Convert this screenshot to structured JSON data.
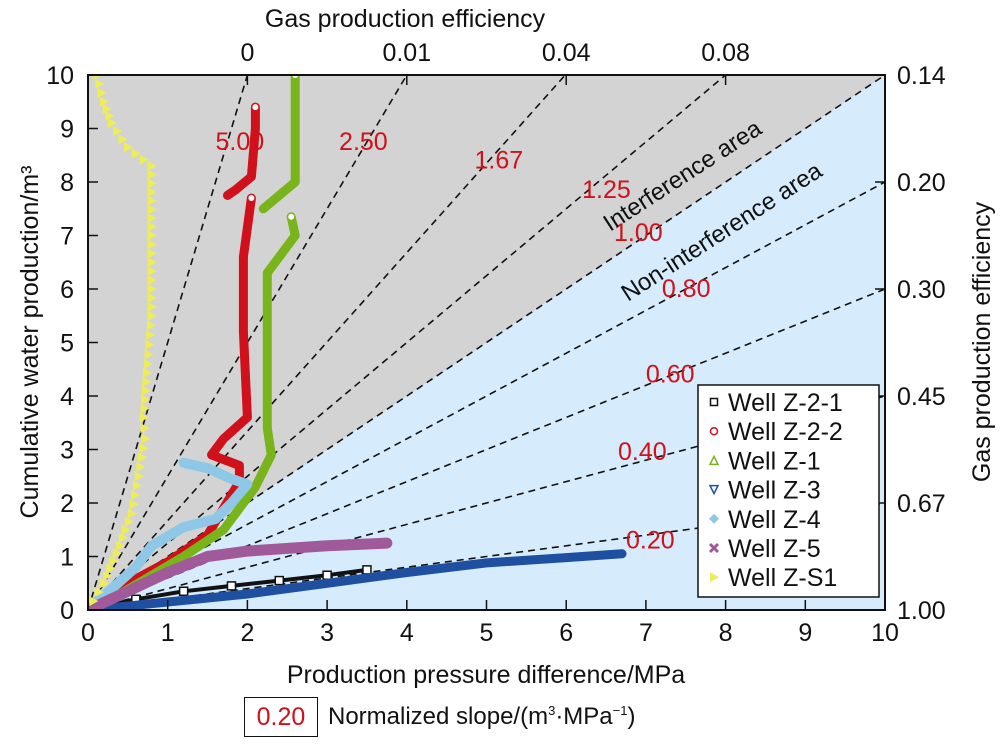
{
  "chart_data": {
    "type": "scatter",
    "title": "",
    "xlabel": "Production pressure difference/MPa",
    "ylabel": "Cumulative water production/m³",
    "top_axis_label": "Gas production efficiency",
    "right_axis_label": "Gas production efficiency",
    "xlim": [
      0,
      10
    ],
    "ylim": [
      0,
      10
    ],
    "x_ticks": [
      "0",
      "1",
      "2",
      "3",
      "4",
      "5",
      "6",
      "7",
      "8",
      "9",
      "10"
    ],
    "y_ticks": [
      "0",
      "1",
      "2",
      "3",
      "4",
      "5",
      "6",
      "7",
      "8",
      "9",
      "10"
    ],
    "top_ticks": [
      {
        "x": 2,
        "label": "0"
      },
      {
        "x": 4,
        "label": "0.01"
      },
      {
        "x": 6,
        "label": "0.04"
      },
      {
        "x": 8,
        "label": "0.08"
      }
    ],
    "right_ticks": [
      {
        "y": 10,
        "label": "0.14"
      },
      {
        "y": 8,
        "label": "0.20"
      },
      {
        "y": 6,
        "label": "0.30"
      },
      {
        "y": 4,
        "label": "0.45"
      },
      {
        "y": 2,
        "label": "0.67"
      },
      {
        "y": 0,
        "label": "1.00"
      }
    ],
    "reference_lines": [
      {
        "slope": 5.0,
        "label": "5.00",
        "label_at": [
          1.6,
          8.6
        ]
      },
      {
        "slope": 2.5,
        "label": "2.50",
        "label_at": [
          3.15,
          8.6
        ]
      },
      {
        "slope": 1.67,
        "label": "1.67",
        "label_at": [
          4.85,
          8.25
        ]
      },
      {
        "slope": 1.25,
        "label": "1.25",
        "label_at": [
          6.2,
          7.7
        ]
      },
      {
        "slope": 1.0,
        "label": "1.00",
        "label_at": [
          6.6,
          6.9
        ]
      },
      {
        "slope": 0.8,
        "label": "0.80",
        "label_at": [
          7.2,
          5.85
        ]
      },
      {
        "slope": 0.6,
        "label": "0.60",
        "label_at": [
          7.0,
          4.25
        ]
      },
      {
        "slope": 0.4,
        "label": "0.40",
        "label_at": [
          6.65,
          2.8
        ]
      },
      {
        "slope": 0.2,
        "label": "0.20",
        "label_at": [
          6.75,
          1.15
        ]
      }
    ],
    "regions": [
      {
        "name": "Interference area",
        "bound": "above slope 1.00",
        "color": "#d3d3d3"
      },
      {
        "name": "Non-interference area",
        "bound": "below slope 1.00",
        "color": "#d6ebfb"
      }
    ],
    "series": [
      {
        "name": "Well Z-2-1",
        "marker": "square",
        "color": "#111111",
        "points": [
          [
            0,
            0
          ],
          [
            0.6,
            0.2
          ],
          [
            1.2,
            0.35
          ],
          [
            1.8,
            0.45
          ],
          [
            2.4,
            0.55
          ],
          [
            3.0,
            0.65
          ],
          [
            3.5,
            0.75
          ]
        ]
      },
      {
        "name": "Well Z-2-2",
        "marker": "circle",
        "color": "#d0101a",
        "segments": [
          [
            [
              2.1,
              9.4
            ],
            [
              2.1,
              9.0
            ],
            [
              2.05,
              8.1
            ],
            [
              1.85,
              7.85
            ],
            [
              1.75,
              7.75
            ]
          ],
          [
            [
              2.05,
              7.7
            ],
            [
              1.95,
              6.6
            ],
            [
              1.95,
              5.2
            ],
            [
              2.0,
              3.6
            ],
            [
              1.7,
              3.2
            ],
            [
              1.55,
              2.9
            ],
            [
              1.9,
              2.7
            ],
            [
              1.9,
              2.4
            ],
            [
              1.5,
              1.4
            ],
            [
              1.0,
              0.9
            ],
            [
              0.5,
              0.5
            ],
            [
              0,
              0
            ]
          ]
        ]
      },
      {
        "name": "Well Z-1",
        "marker": "triangle-up",
        "color": "#78b41a",
        "segments": [
          [
            [
              2.6,
              10
            ],
            [
              2.6,
              8.6
            ],
            [
              2.6,
              8.0
            ],
            [
              2.2,
              7.5
            ]
          ],
          [
            [
              2.55,
              7.35
            ],
            [
              2.6,
              7.0
            ],
            [
              2.25,
              6.3
            ],
            [
              2.25,
              3.4
            ],
            [
              2.3,
              2.9
            ],
            [
              2.1,
              2.3
            ],
            [
              1.7,
              1.5
            ],
            [
              1.2,
              1.0
            ],
            [
              0.8,
              0.65
            ],
            [
              0.4,
              0.3
            ],
            [
              0,
              0
            ]
          ]
        ]
      },
      {
        "name": "Well Z-3",
        "marker": "triangle-down",
        "color": "#1e4fa0",
        "points": [
          [
            0,
            0
          ],
          [
            1,
            0.15
          ],
          [
            2,
            0.3
          ],
          [
            3,
            0.5
          ],
          [
            4,
            0.7
          ],
          [
            5,
            0.88
          ],
          [
            6,
            0.98
          ],
          [
            6.7,
            1.05
          ]
        ]
      },
      {
        "name": "Well Z-4",
        "marker": "diamond",
        "color": "#8ec8e6",
        "points": [
          [
            1.2,
            2.75
          ],
          [
            1.5,
            2.65
          ],
          [
            1.8,
            2.45
          ],
          [
            2.0,
            2.35
          ],
          [
            1.8,
            2.0
          ],
          [
            1.6,
            1.7
          ],
          [
            1.2,
            1.55
          ],
          [
            0.8,
            1.2
          ],
          [
            0.6,
            0.8
          ],
          [
            0.3,
            0.4
          ],
          [
            0,
            0
          ]
        ]
      },
      {
        "name": "Well Z-5",
        "marker": "x",
        "color": "#a05a9a",
        "points": [
          [
            0,
            0
          ],
          [
            0.5,
            0.35
          ],
          [
            1.0,
            0.7
          ],
          [
            1.5,
            1.0
          ],
          [
            2.0,
            1.1
          ],
          [
            3.0,
            1.2
          ],
          [
            3.75,
            1.25
          ]
        ]
      },
      {
        "name": "Well Z-S1",
        "marker": "triangle-right",
        "color": "#eded5a",
        "points": [
          [
            0.11,
            10
          ],
          [
            0.2,
            9.5
          ],
          [
            0.3,
            9.1
          ],
          [
            0.5,
            8.65
          ],
          [
            0.8,
            8.3
          ],
          [
            0.8,
            7.0
          ],
          [
            0.8,
            5.5
          ],
          [
            0.75,
            4.6
          ],
          [
            0.7,
            3.6
          ],
          [
            0.72,
            3.2
          ],
          [
            0.55,
            1.8
          ],
          [
            0.4,
            1.2
          ],
          [
            0.2,
            0.5
          ],
          [
            0,
            0
          ]
        ]
      }
    ],
    "legend": [
      "Well Z-2-1",
      "Well Z-2-2",
      "Well Z-1",
      "Well Z-3",
      "Well Z-4",
      "Well Z-5",
      "Well Z-S1"
    ],
    "legend_position": "bottom-right",
    "area_labels": [
      "Interference area",
      "Non-interference area"
    ],
    "note": {
      "value": "0.20",
      "text": "Normalized slope/(m",
      "unit_sup": "3",
      "mid": "·MPa",
      "unit_sup2": "−1",
      "close": ")"
    }
  }
}
